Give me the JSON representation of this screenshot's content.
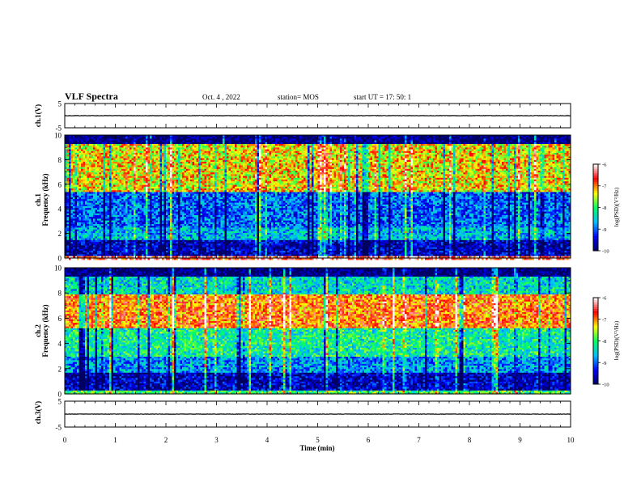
{
  "header": {
    "title": "VLF Spectra",
    "date": "Oct. 4 , 2022",
    "station": "station= MOS",
    "start_ut": "start UT = 17: 50: 1"
  },
  "chart_data": [
    {
      "type": "line",
      "name": "ch1-waveform",
      "ylabel": "ch.1(V)",
      "ylim": [
        -5,
        5
      ],
      "yticks": [
        "5",
        "-5"
      ],
      "x": [
        0,
        10
      ],
      "values": [
        0,
        0
      ]
    },
    {
      "type": "heatmap",
      "name": "ch1-spectrogram",
      "ylabel_channel": "ch.1",
      "ylabel": "Frequency (kHz)",
      "ylim": [
        0,
        10
      ],
      "yticks": [
        "0",
        "2",
        "4",
        "6",
        "8",
        "10"
      ],
      "colorbar": {
        "label": "log(PSD)(V²/Hz)",
        "range": [
          -10,
          -6
        ],
        "ticks": [
          "-6",
          "-7",
          "-8",
          "-9",
          "-10"
        ],
        "colors": [
          "#000060",
          "#0000ff",
          "#00c0ff",
          "#00ff60",
          "#ffff00",
          "#ff0000",
          "#ffffff"
        ]
      },
      "bands": [
        {
          "from_khz": 0,
          "to_khz": 0.3,
          "level": -6.5
        },
        {
          "from_khz": 0.3,
          "to_khz": 1.6,
          "level": -9.6
        },
        {
          "from_khz": 1.6,
          "to_khz": 2.6,
          "level": -8.6
        },
        {
          "from_khz": 2.6,
          "to_khz": 5.5,
          "level": -9.0
        },
        {
          "from_khz": 5.5,
          "to_khz": 9.3,
          "level": -7.3
        },
        {
          "from_khz": 9.3,
          "to_khz": 10,
          "level": -10
        }
      ]
    },
    {
      "type": "heatmap",
      "name": "ch2-spectrogram",
      "ylabel_channel": "ch.2",
      "ylabel": "Frequency (kHz)",
      "ylim": [
        0,
        10
      ],
      "yticks": [
        "0",
        "2",
        "4",
        "6",
        "8",
        "10"
      ],
      "colorbar": {
        "label": "log(PSD)(V²/Hz)",
        "range": [
          -10,
          -6
        ],
        "ticks": [
          "-6",
          "-7",
          "-8",
          "-9",
          "-10"
        ],
        "colors": [
          "#000060",
          "#0000ff",
          "#00c0ff",
          "#00ff60",
          "#ffff00",
          "#ff0000",
          "#ffffff"
        ]
      },
      "bands": [
        {
          "from_khz": 0,
          "to_khz": 0.4,
          "level": -8.0
        },
        {
          "from_khz": 0.4,
          "to_khz": 1.7,
          "level": -9.6
        },
        {
          "from_khz": 1.7,
          "to_khz": 3.0,
          "level": -8.8
        },
        {
          "from_khz": 3.0,
          "to_khz": 5.3,
          "level": -8.2
        },
        {
          "from_khz": 5.3,
          "to_khz": 8.0,
          "level": -6.9
        },
        {
          "from_khz": 8.0,
          "to_khz": 9.4,
          "level": -8.4
        },
        {
          "from_khz": 9.4,
          "to_khz": 10,
          "level": -10
        }
      ]
    },
    {
      "type": "line",
      "name": "ch3-waveform",
      "ylabel": "ch.3(V)",
      "ylim": [
        -5,
        5
      ],
      "yticks": [
        "5",
        "-5"
      ],
      "x": [
        0,
        10
      ],
      "values": [
        0,
        0
      ]
    }
  ],
  "x_axis": {
    "label": "Time (min)",
    "range": [
      0,
      10
    ],
    "ticks": [
      "0",
      "1",
      "2",
      "3",
      "4",
      "5",
      "6",
      "7",
      "8",
      "9",
      "10"
    ]
  }
}
